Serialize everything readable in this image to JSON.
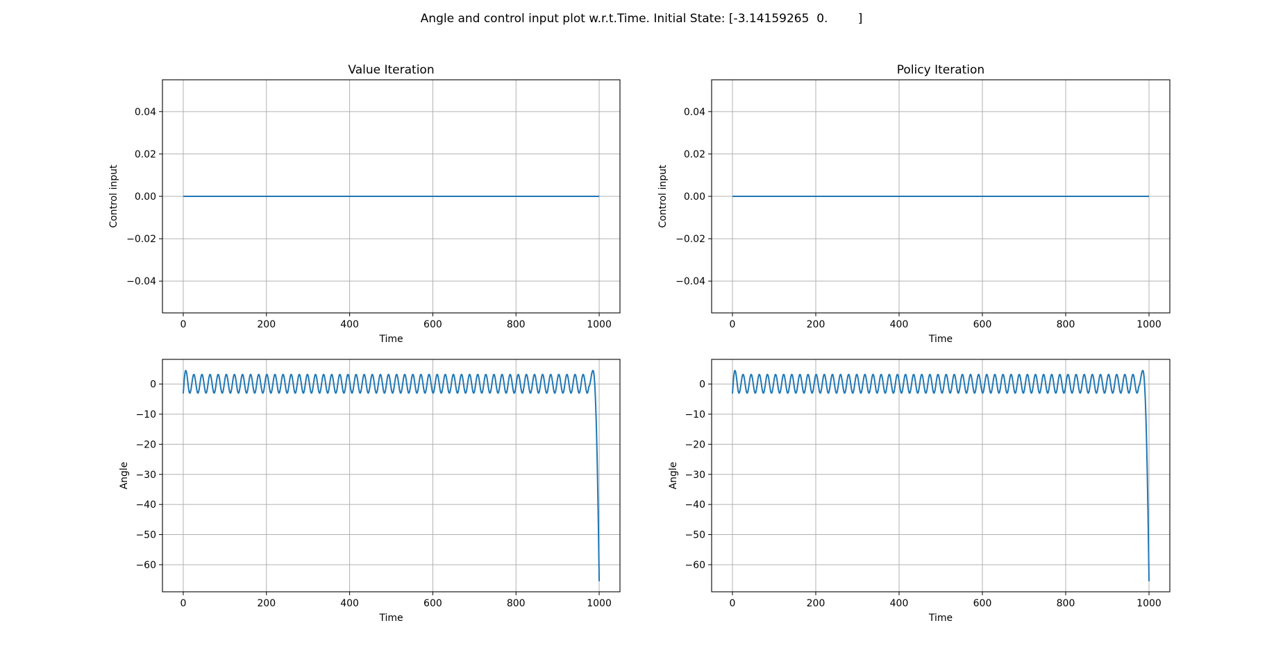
{
  "figure": {
    "suptitle": "Angle and control input plot w.r.t.Time. Initial State: [-3.14159265  0.        ]"
  },
  "colors": {
    "line": "#1f77b4",
    "grid": "#b0b0b0",
    "axes": "#000000"
  },
  "chart_data": [
    {
      "type": "line",
      "title": "Value Iteration",
      "xlabel": "Time",
      "ylabel": "Control input",
      "xlim": [
        -50,
        1050
      ],
      "ylim": [
        -0.055,
        0.055
      ],
      "xticks": [
        0,
        200,
        400,
        600,
        800,
        1000
      ],
      "yticks": [
        -0.04,
        -0.02,
        0.0,
        0.02,
        0.04
      ],
      "ytick_labels": [
        "−0.04",
        "−0.02",
        "0.00",
        "0.02",
        "0.04"
      ],
      "grid": true,
      "series": [
        {
          "kind": "constant",
          "x": [
            0,
            1000
          ],
          "y": [
            0,
            0
          ]
        }
      ]
    },
    {
      "type": "line",
      "title": "Policy Iteration",
      "xlabel": "Time",
      "ylabel": "Control input",
      "xlim": [
        -50,
        1050
      ],
      "ylim": [
        -0.055,
        0.055
      ],
      "xticks": [
        0,
        200,
        400,
        600,
        800,
        1000
      ],
      "yticks": [
        -0.04,
        -0.02,
        0.0,
        0.02,
        0.04
      ],
      "ytick_labels": [
        "−0.04",
        "−0.02",
        "0.00",
        "0.02",
        "0.04"
      ],
      "grid": true,
      "series": [
        {
          "kind": "constant",
          "x": [
            0,
            1000
          ],
          "y": [
            0,
            0
          ]
        }
      ]
    },
    {
      "type": "line",
      "title": "",
      "xlabel": "Time",
      "ylabel": "Angle",
      "xlim": [
        -50,
        1050
      ],
      "ylim": [
        -69,
        8.2
      ],
      "xticks": [
        0,
        200,
        400,
        600,
        800,
        1000
      ],
      "yticks": [
        0,
        -10,
        -20,
        -30,
        -40,
        -50,
        -60
      ],
      "ytick_labels": [
        "0",
        "−10",
        "−20",
        "−30",
        "−40",
        "−50",
        "−60"
      ],
      "grid": true,
      "series": [
        {
          "kind": "pendulum",
          "initial_angle": -3.14159265,
          "peak_angle": 4.5,
          "swing_high": 3.2,
          "swing_low": -3.0,
          "period": 19.5,
          "settle_time": 30,
          "last_peak_time": 985,
          "end_time": 1000,
          "final_angle": -65.5
        }
      ]
    },
    {
      "type": "line",
      "title": "",
      "xlabel": "Time",
      "ylabel": "Angle",
      "xlim": [
        -50,
        1050
      ],
      "ylim": [
        -69,
        8.2
      ],
      "xticks": [
        0,
        200,
        400,
        600,
        800,
        1000
      ],
      "yticks": [
        0,
        -10,
        -20,
        -30,
        -40,
        -50,
        -60
      ],
      "ytick_labels": [
        "0",
        "−10",
        "−20",
        "−30",
        "−40",
        "−50",
        "−60"
      ],
      "grid": true,
      "series": [
        {
          "kind": "pendulum",
          "initial_angle": -3.14159265,
          "peak_angle": 4.5,
          "swing_high": 3.2,
          "swing_low": -3.0,
          "period": 19.5,
          "settle_time": 30,
          "last_peak_time": 985,
          "end_time": 1000,
          "final_angle": -65.5
        }
      ]
    }
  ]
}
